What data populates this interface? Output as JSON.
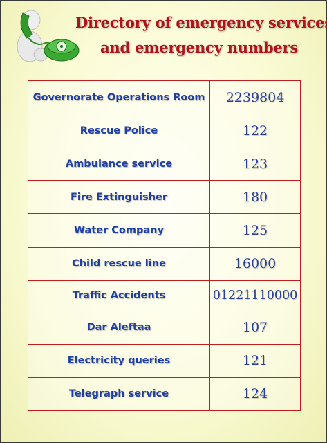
{
  "header": {
    "title_line1": "Directory of emergency services",
    "title_line2": "and emergency numbers",
    "icon": "telephone-person-icon"
  },
  "colors": {
    "title": "#b0121b",
    "service_text": "#1f3fa8",
    "number_text": "#2a3f9a",
    "table_border": "#c01e1e",
    "background": "#fbfbd6",
    "phone": "#3aa832"
  },
  "directory": [
    {
      "service": "Governorate Operations Room",
      "number": "2239804"
    },
    {
      "service": "Rescue Police",
      "number": "122"
    },
    {
      "service": "Ambulance service",
      "number": "123"
    },
    {
      "service": "Fire Extinguisher",
      "number": "180"
    },
    {
      "service": "Water Company",
      "number": "125"
    },
    {
      "service": "Child rescue line",
      "number": "16000"
    },
    {
      "service": "Traffic Accidents",
      "number": "01221110000"
    },
    {
      "service": "Dar Aleftaa",
      "number": "107"
    },
    {
      "service": "Electricity queries",
      "number": "121"
    },
    {
      "service": "Telegraph service",
      "number": "124"
    }
  ]
}
